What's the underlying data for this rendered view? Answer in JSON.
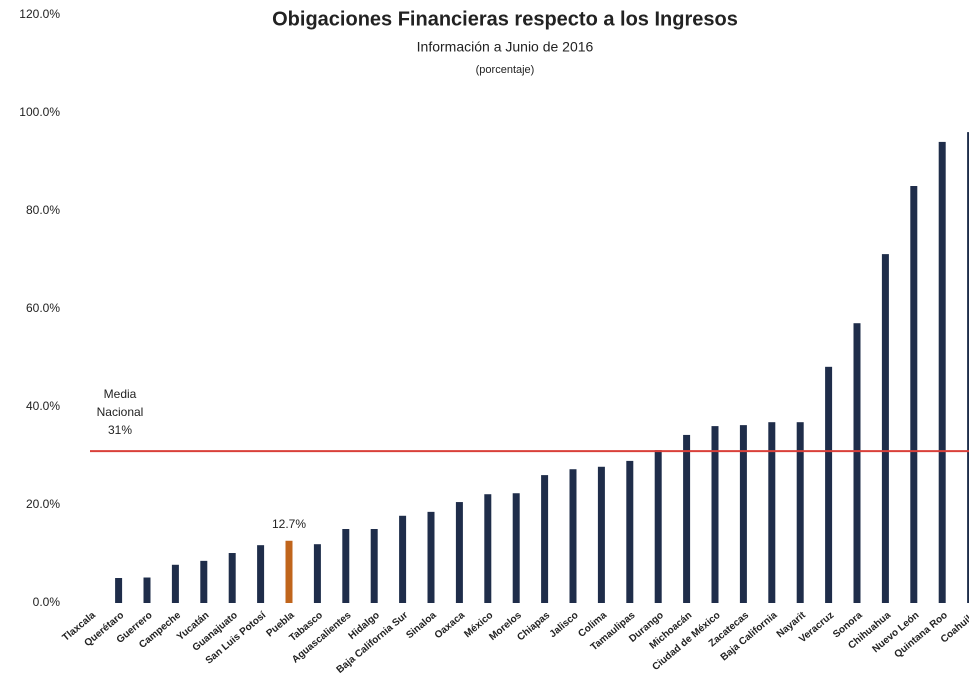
{
  "chart_data": {
    "type": "bar",
    "title": "Obigaciones Financieras respecto a los Ingresos",
    "subtitle": "Información a Junio de 2016",
    "unit_note": "(porcentaje)",
    "categories": [
      "Tlaxcala",
      "Querétaro",
      "Guerrero",
      "Campeche",
      "Yucatán",
      "Guanajuato",
      "San Luis Potosí",
      "Puebla",
      "Tabasco",
      "Aguascalientes",
      "Hidalgo",
      "Baja California Sur",
      "Sinaloa",
      "Oaxaca",
      "México",
      "Morelos",
      "Chiapas",
      "Jalisco",
      "Colima",
      "Tamaulipas",
      "Durango",
      "Michoacán",
      "Ciudad de México",
      "Zacatecas",
      "Baja California",
      "Nayarit",
      "Veracruz",
      "Sonora",
      "Chihuahua",
      "Nuevo León",
      "Quintana Roo",
      "Coahuila"
    ],
    "values": [
      0,
      5.1,
      5.2,
      7.8,
      8.6,
      10.2,
      11.8,
      12.7,
      12.0,
      15.1,
      15.1,
      17.8,
      18.6,
      20.6,
      22.2,
      22.4,
      26.1,
      27.3,
      27.8,
      29.0,
      31.2,
      34.3,
      36.1,
      36.3,
      36.9,
      36.9,
      48.2,
      57.1,
      71.2,
      85.1,
      94.1,
      96.1
    ],
    "value_labels": [
      null,
      null,
      null,
      null,
      null,
      null,
      null,
      "12.7%",
      null,
      null,
      null,
      null,
      null,
      null,
      null,
      null,
      null,
      null,
      null,
      null,
      null,
      null,
      null,
      null,
      null,
      null,
      null,
      null,
      null,
      null,
      null,
      null
    ],
    "colors": [
      "#1f2d4a",
      "#1f2d4a",
      "#1f2d4a",
      "#1f2d4a",
      "#1f2d4a",
      "#1f2d4a",
      "#1f2d4a",
      "#c0651c",
      "#1f2d4a",
      "#1f2d4a",
      "#1f2d4a",
      "#1f2d4a",
      "#1f2d4a",
      "#1f2d4a",
      "#1f2d4a",
      "#1f2d4a",
      "#1f2d4a",
      "#1f2d4a",
      "#1f2d4a",
      "#1f2d4a",
      "#1f2d4a",
      "#1f2d4a",
      "#1f2d4a",
      "#1f2d4a",
      "#1f2d4a",
      "#1f2d4a",
      "#1f2d4a",
      "#1f2d4a",
      "#1f2d4a",
      "#1f2d4a",
      "#1f2d4a",
      "#1f2d4a"
    ],
    "ylim": [
      0,
      120
    ],
    "yticks": [
      {
        "value": 0,
        "label": "0.0%"
      },
      {
        "value": 20,
        "label": "20.0%"
      },
      {
        "value": 40,
        "label": "40.0%"
      },
      {
        "value": 60,
        "label": "60.0%"
      },
      {
        "value": 80,
        "label": "80.0%"
      },
      {
        "value": 100,
        "label": "100.0%"
      },
      {
        "value": 120,
        "label": "120.0%"
      }
    ],
    "grid": false,
    "reference_line": {
      "value": 31,
      "color": "#d9403a",
      "label_lines": [
        "Media",
        "Nacional",
        "31%"
      ]
    }
  }
}
